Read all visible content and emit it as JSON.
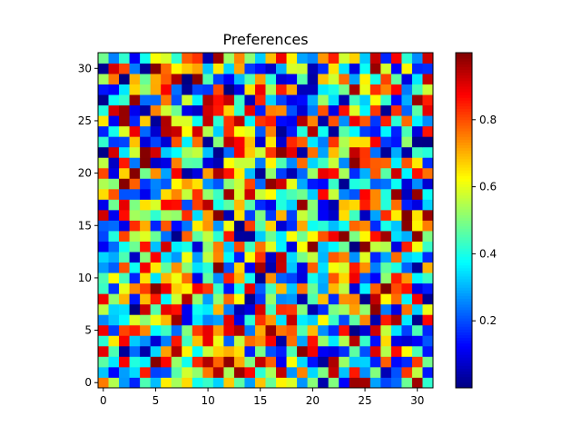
{
  "chart_data": {
    "type": "heatmap",
    "title": "Preferences",
    "xlabel": "",
    "ylabel": "",
    "rows": 32,
    "cols": 32,
    "x_ticks": [
      0,
      5,
      10,
      15,
      20,
      25,
      30
    ],
    "y_ticks": [
      0,
      5,
      10,
      15,
      20,
      25,
      30
    ],
    "xlim": [
      -0.5,
      31.5
    ],
    "ylim": [
      -0.5,
      31.5
    ],
    "origin": "lower",
    "colormap": "jet",
    "value_range": [
      0.0,
      1.0
    ],
    "colorbar_ticks": [
      0.2,
      0.4,
      0.6,
      0.8
    ],
    "colorbar_tick_labels": [
      "0.2",
      "0.4",
      "0.6",
      "0.8"
    ],
    "grid": false,
    "seed": 1337
  }
}
